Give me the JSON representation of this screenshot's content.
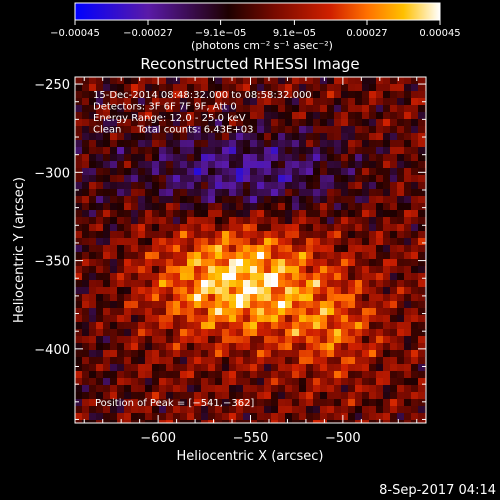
{
  "chart_data": {
    "type": "heatmap",
    "title": "Reconstructed RHESSI Image",
    "xlabel": "Heliocentric X (arcsec)",
    "ylabel": "Heliocentric Y (arcsec)",
    "xlim": [
      -645,
      -455
    ],
    "ylim": [
      -442,
      -246
    ],
    "x_ticks": [
      -600,
      -550,
      -500
    ],
    "x_tick_labels": [
      "−600",
      "−550",
      "−500"
    ],
    "y_ticks": [
      -250,
      -300,
      -350,
      -400
    ],
    "y_tick_labels": [
      "−250",
      "−300",
      "−350",
      "−400"
    ],
    "colorbar": {
      "range": [
        -0.00045,
        0.00045
      ],
      "tick_values": [
        -0.00045,
        -0.00027,
        -9.1e-05,
        9.1e-05,
        0.00027,
        0.00045
      ],
      "tick_labels": [
        "−0.00045",
        "−0.00027",
        "−9.1e−05",
        "9.1e−05",
        "0.00027",
        "0.00045"
      ],
      "units": "(photons cm⁻² s⁻¹ asec⁻²)",
      "stops": [
        "#0000ff",
        "#5a1aa8",
        "#1e0000",
        "#7a0a00",
        "#d02000",
        "#ff7000",
        "#ffc000",
        "#ffffff"
      ]
    },
    "info_lines": [
      "15-Dec-2014 08:48:32.000 to 08:58:32.000",
      "Detectors: 3F 6F 7F 9F, Att 0",
      "Energy Range: 12.0 - 25.0 keV",
      "Clean     Total counts: 6.43E+03"
    ],
    "peak_label": "Position of Peak = [−541,−362]",
    "peak": [
      -541,
      -362
    ]
  },
  "footer": {
    "date": "8-Sep-2017 04:14"
  }
}
